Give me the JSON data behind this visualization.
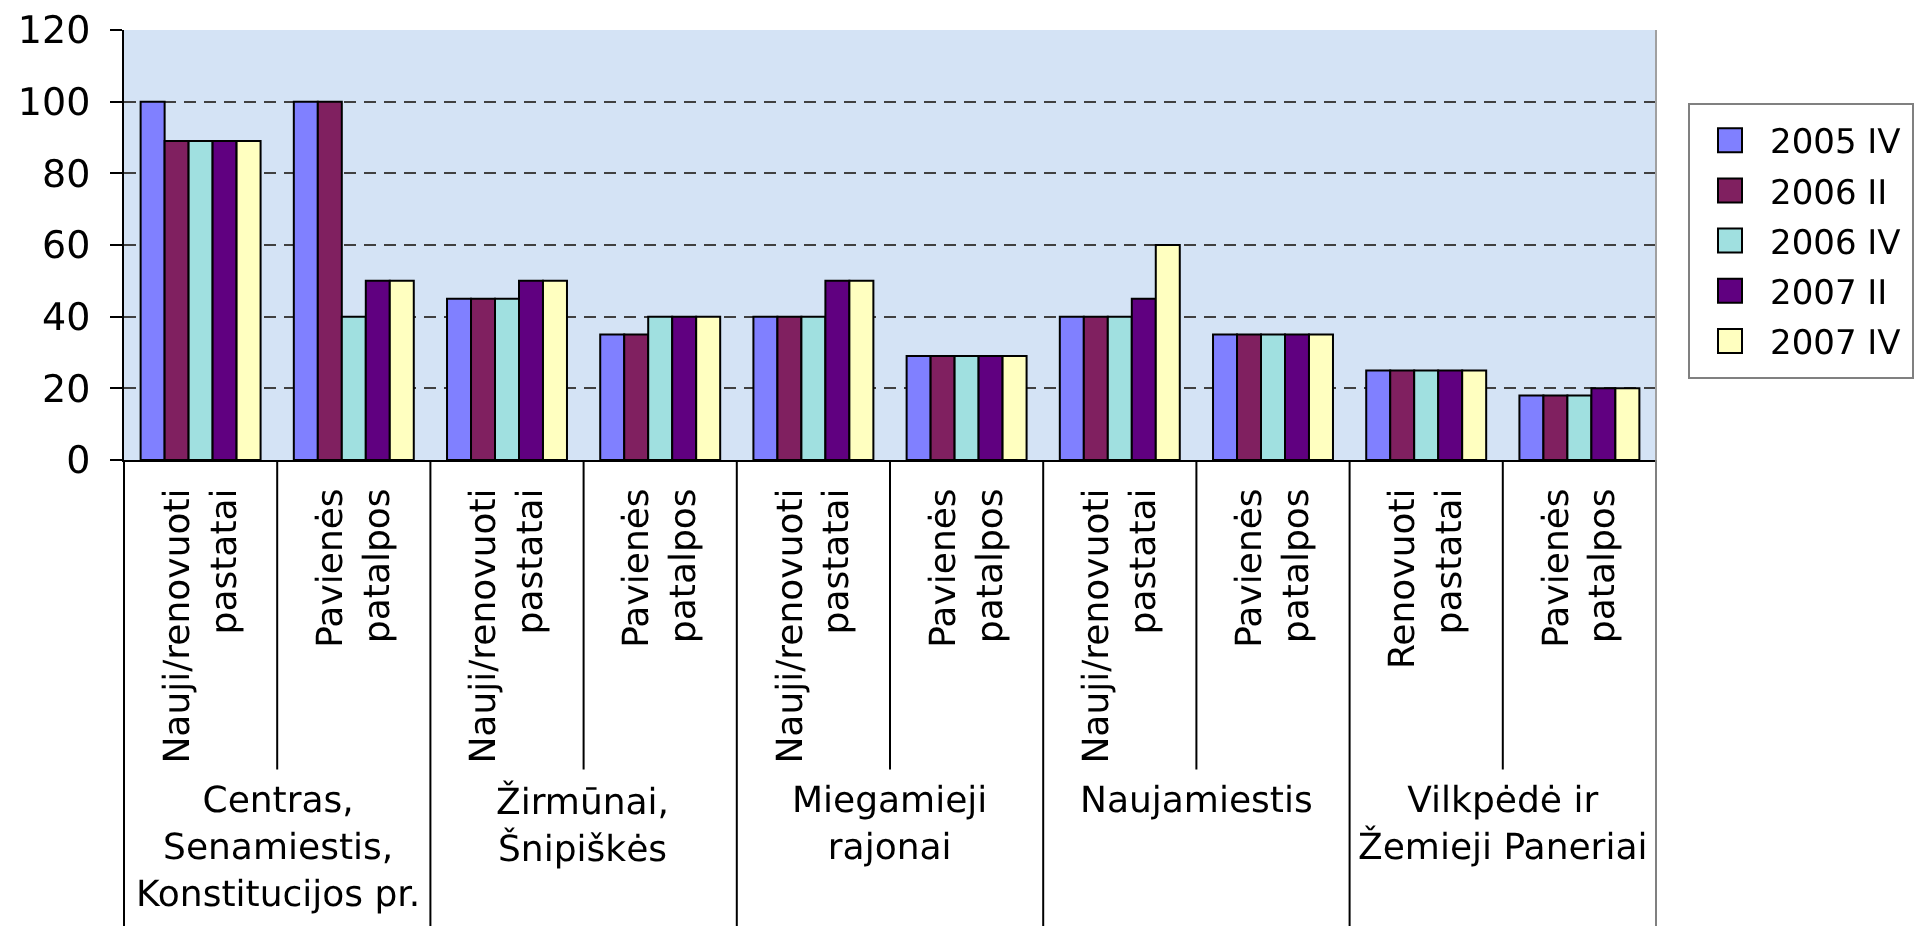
{
  "chart_data": {
    "type": "bar",
    "categories": [
      "Nauji/renovuoti pastatai",
      "Pavienės patalpos",
      "Nauji/renovuoti pastatai",
      "Pavienės patalpos",
      "Nauji/renovuoti pastatai",
      "Pavienės patalpos",
      "Nauji/renovuoti pastatai",
      "Pavienės patalpos",
      "Renovuoti pastatai",
      "Pavienės patalpos"
    ],
    "series": [
      {
        "name": "2005 IV",
        "color": "#8080ff",
        "values": [
          100,
          100,
          45,
          35,
          40,
          29,
          40,
          35,
          25,
          18
        ]
      },
      {
        "name": "2006 II",
        "color": "#802060",
        "values": [
          89,
          100,
          45,
          35,
          40,
          29,
          40,
          35,
          25,
          18
        ]
      },
      {
        "name": "2006 IV",
        "color": "#a0e0e0",
        "values": [
          89,
          40,
          45,
          40,
          40,
          29,
          40,
          35,
          25,
          18
        ]
      },
      {
        "name": "2007 II",
        "color": "#600080",
        "values": [
          89,
          50,
          50,
          40,
          50,
          29,
          45,
          35,
          25,
          20
        ]
      },
      {
        "name": "2007 IV",
        "color": "#ffffc0",
        "values": [
          89,
          50,
          50,
          40,
          50,
          29,
          60,
          35,
          25,
          20
        ]
      }
    ],
    "annotations": [
      "Centras, Senamiestis, Konstitucijos pr.",
      "Žirmūnai, Šnipiškės",
      "Miegamieji rajonai",
      "Naujamiestis",
      "Vilkpėdė ir Žemieji Paneriai"
    ],
    "ylim": [
      0,
      120
    ],
    "yticks": [
      0,
      20,
      40,
      60,
      80,
      100,
      120
    ],
    "grid": "y",
    "legend": "right"
  }
}
